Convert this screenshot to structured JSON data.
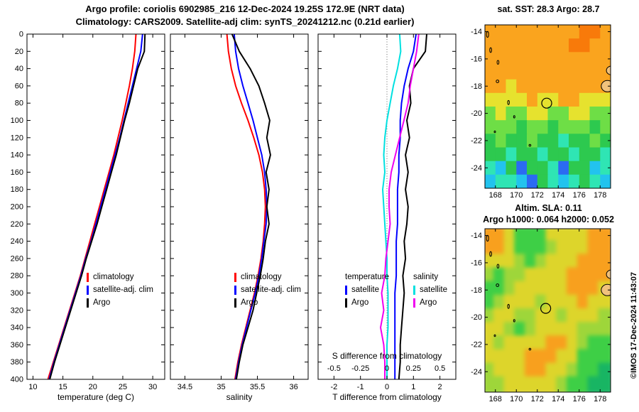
{
  "header": {
    "line1": "Argo profile: coriolis 6902985_216 12-Dec-2024 19.25S 172.9E (NRT data)",
    "line2": "Climatology: CARS2009. Satellite-adj clim: synTS_20241212.nc (0.21d earlier)"
  },
  "watermark": "©IMOS 17-Dec-2024 11:43:07",
  "depths": [
    0,
    20,
    40,
    60,
    80,
    100,
    120,
    140,
    160,
    180,
    200,
    220,
    240,
    260,
    280,
    300,
    320,
    340,
    360,
    380,
    400
  ],
  "islands": [
    {
      "lon": 178.7,
      "lat": -18.0,
      "rx": 0.6,
      "ry": 0.42,
      "fill": "#f1c27d"
    },
    {
      "lon": 179.1,
      "lat": -16.85,
      "rx": 0.5,
      "ry": 0.33,
      "fill": "#f1c27d"
    },
    {
      "lon": 167.25,
      "lat": -14.2,
      "rx": 0.1,
      "ry": 0.22
    },
    {
      "lon": 167.55,
      "lat": -15.35,
      "rx": 0.09,
      "ry": 0.18
    },
    {
      "lon": 168.25,
      "lat": -16.25,
      "rx": 0.09,
      "ry": 0.14
    },
    {
      "lon": 168.2,
      "lat": -17.65,
      "rx": 0.13,
      "ry": 0.1
    },
    {
      "lon": 169.25,
      "lat": -19.2,
      "rx": 0.08,
      "ry": 0.15
    },
    {
      "lon": 169.8,
      "lat": -20.25,
      "rx": 0.07,
      "ry": 0.09
    },
    {
      "lon": 171.3,
      "lat": -22.35,
      "rx": 0.09,
      "ry": 0.07
    },
    {
      "lon": 167.95,
      "lat": -21.35,
      "rx": 0.07,
      "ry": 0.07
    }
  ],
  "chart_data": [
    {
      "id": "temperature",
      "type": "line",
      "xlabel": "temperature (deg C)",
      "xlim": [
        9,
        32
      ],
      "xticks": [
        10,
        15,
        20,
        25,
        30
      ],
      "ylim": [
        0,
        400
      ],
      "yticks": [
        0,
        20,
        40,
        60,
        80,
        100,
        120,
        140,
        160,
        180,
        200,
        220,
        240,
        260,
        280,
        300,
        320,
        340,
        360,
        380,
        400
      ],
      "series": [
        {
          "name": "climatology",
          "color": "#ff0000",
          "values": [
            27.2,
            27.0,
            26.6,
            26.1,
            25.5,
            24.9,
            24.2,
            23.5,
            22.7,
            21.9,
            21.1,
            20.3,
            19.5,
            18.7,
            17.9,
            17.0,
            16.1,
            15.2,
            14.3,
            13.4,
            12.5
          ]
        },
        {
          "name": "satellite-adj. clim",
          "color": "#0000ff",
          "values": [
            28.3,
            28.0,
            27.3,
            26.6,
            25.9,
            25.2,
            24.5,
            23.7,
            22.9,
            22.1,
            21.3,
            20.5,
            19.7,
            18.8,
            18.0,
            17.1,
            16.2,
            15.3,
            14.4,
            13.5,
            12.7
          ]
        },
        {
          "name": "Argo",
          "color": "#000000",
          "values": [
            28.7,
            28.6,
            27.5,
            26.8,
            26.1,
            25.3,
            24.6,
            23.9,
            23.1,
            22.3,
            21.5,
            20.7,
            19.8,
            18.9,
            18.1,
            17.2,
            16.3,
            15.4,
            14.5,
            13.6,
            12.8
          ]
        }
      ]
    },
    {
      "id": "salinity",
      "type": "line",
      "xlabel": "salinity",
      "xlim": [
        34.3,
        36.2
      ],
      "xticks": [
        34.5,
        35,
        35.5,
        36
      ],
      "ylim": [
        0,
        400
      ],
      "series": [
        {
          "name": "climatology",
          "color": "#ff0000",
          "values": [
            35.08,
            35.1,
            35.14,
            35.2,
            35.28,
            35.37,
            35.45,
            35.52,
            35.57,
            35.6,
            35.61,
            35.6,
            35.58,
            35.55,
            35.51,
            35.46,
            35.4,
            35.34,
            35.28,
            35.23,
            35.19
          ]
        },
        {
          "name": "satellite-adj. clim",
          "color": "#0000ff",
          "values": [
            35.18,
            35.2,
            35.24,
            35.3,
            35.37,
            35.44,
            35.5,
            35.56,
            35.6,
            35.62,
            35.63,
            35.62,
            35.59,
            35.56,
            35.52,
            35.47,
            35.41,
            35.35,
            35.29,
            35.24,
            35.2
          ]
        },
        {
          "name": "Argo",
          "color": "#000000",
          "values": [
            35.15,
            35.25,
            35.4,
            35.52,
            35.6,
            35.67,
            35.63,
            35.68,
            35.62,
            35.66,
            35.63,
            35.66,
            35.61,
            35.58,
            35.54,
            35.49,
            35.44,
            35.37,
            35.3,
            35.25,
            35.21
          ]
        }
      ]
    },
    {
      "id": "difference",
      "type": "line",
      "xlabel": "T difference from climatology",
      "xlim": [
        -2.6,
        2.6
      ],
      "xticks": [
        -2,
        -1,
        0,
        1,
        2
      ],
      "ylim": [
        0,
        400
      ],
      "zero_line": true,
      "secondary_axis": {
        "label": "S difference from climatology",
        "ticks": [
          -0.5,
          -0.25,
          0,
          0.25,
          0.5
        ],
        "scale": 4
      },
      "legend_headers": {
        "col1": "temperature",
        "col2": "salinity"
      },
      "series": [
        {
          "name": "satellite",
          "group": "temperature",
          "color": "#0000ff",
          "values": [
            1.1,
            1.0,
            0.8,
            0.65,
            0.55,
            0.5,
            0.5,
            0.45,
            0.45,
            0.4,
            0.4,
            0.4,
            0.35,
            0.35,
            0.35,
            0.3,
            0.3,
            0.3,
            0.3,
            0.3,
            0.3
          ]
        },
        {
          "name": "Argo",
          "group": "temperature",
          "color": "#000000",
          "values": [
            1.5,
            1.45,
            1.0,
            0.85,
            0.9,
            0.75,
            0.85,
            0.7,
            0.8,
            0.7,
            0.8,
            0.75,
            0.65,
            0.7,
            0.6,
            0.65,
            0.6,
            0.55,
            0.5,
            0.5,
            0.45
          ]
        },
        {
          "name": "satellite",
          "group": "salinity",
          "color": "#00e0e0",
          "scale": 4,
          "values": [
            0.12,
            0.13,
            0.1,
            0.06,
            0.03,
            0.0,
            -0.02,
            -0.03,
            -0.02,
            -0.04,
            -0.03,
            -0.02,
            -0.01,
            0.0,
            0.0,
            0.01,
            0.01,
            0.01,
            0.0,
            0.0,
            0.0
          ]
        },
        {
          "name": "Argo",
          "group": "salinity",
          "color": "#f000f0",
          "scale": 4,
          "values": [
            0.3,
            0.28,
            0.25,
            0.22,
            0.2,
            0.16,
            0.12,
            0.08,
            0.04,
            0.02,
            0.02,
            0.03,
            0.01,
            -0.01,
            -0.02,
            -0.05,
            -0.03,
            -0.06,
            -0.03,
            -0.02,
            -0.02
          ]
        }
      ]
    },
    {
      "id": "sst_map",
      "type": "heatmap",
      "title": "sat. SST: 28.3 Argo: 28.7",
      "xlim": [
        167,
        179
      ],
      "xticks": [
        168,
        170,
        172,
        174,
        176,
        178
      ],
      "ylim": [
        -25.5,
        -13.5
      ],
      "yticks": [
        -14,
        -16,
        -18,
        -20,
        -22,
        -24
      ],
      "marker": {
        "lon": 172.9,
        "lat": -19.25
      },
      "palette": {
        "R": "#f87a0a",
        "O": "#faa41e",
        "Y": "#e6e22e",
        "G": "#6ede46",
        "g": "#2dc94f",
        "C": "#2fe5b4",
        "c": "#22c3ee",
        "B": "#2b6bf2"
      },
      "rows": [
        "OOOOOOOOORRO",
        "OOOOOOOORROO",
        "OOOOOOOOOOOO",
        "OOOOOOOOOOOO",
        "OOYOOOOOOOOO",
        "YYYYOYYOOYYY",
        "GYGGYYGGYYGG",
        "GGGgGGgGGGgG",
        "gGggGggCggGg",
        "ggCggCggCggC",
        "CcgBggCBggcC",
        "cCCcBgCcCgCc"
      ]
    },
    {
      "id": "sla_map",
      "type": "heatmap",
      "title1": "Altim. SLA: 0.11",
      "title2": "Argo h1000: 0.064 h2000: 0.052",
      "xlim": [
        167,
        179
      ],
      "xticks": [
        168,
        170,
        172,
        174,
        176,
        178
      ],
      "ylim": [
        -25.5,
        -13.5
      ],
      "yticks": [
        -14,
        -16,
        -18,
        -20,
        -22,
        -24
      ],
      "marker": {
        "lon": 172.8,
        "lat": -19.35
      },
      "palette": {
        "O": "#f8a01e",
        "Y": "#ddd52b",
        "G": "#3ecf46",
        "g": "#9ed63a",
        "d": "#18b563"
      },
      "rows": [
        "OOYGGGYYYYOO",
        "OOYGGGgYYYOO",
        "YYYgGgYYYOOO",
        "gGggYYYYOOOO",
        "GGgYYYYYOOOY",
        "GgYYYgYYYOYY",
        "gYYggYYgYYYg",
        "YYgGgYYYYggg",
        "YgYYYYOOYgGG",
        "YYYYOOOYYGGG",
        "gYYYOOYYgGGd",
        "ggYYYYYgGGdd"
      ]
    }
  ]
}
